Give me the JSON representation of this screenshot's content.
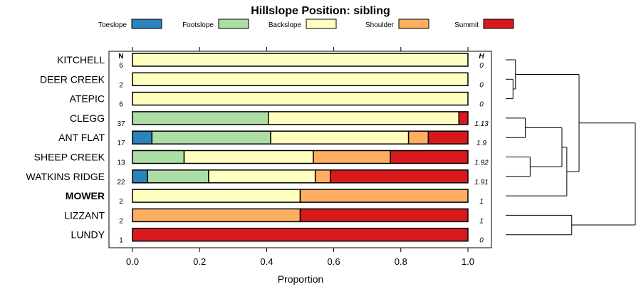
{
  "chart_data": {
    "type": "bar",
    "orientation": "horizontal",
    "stacked": true,
    "title": "Hillslope Position: sibling",
    "xlabel": "Proportion",
    "ylabel": "",
    "xlim": [
      0,
      1
    ],
    "xticks": [
      "0.0",
      "0.2",
      "0.4",
      "0.6",
      "0.8",
      "1.0"
    ],
    "xtick_values": [
      0,
      0.2,
      0.4,
      0.6,
      0.8,
      1.0
    ],
    "n_header": "N",
    "h_header": "H",
    "legend": [
      {
        "name": "Toeslope",
        "color": "#2b83ba"
      },
      {
        "name": "Footslope",
        "color": "#abdda4"
      },
      {
        "name": "Backslope",
        "color": "#ffffbf"
      },
      {
        "name": "Shoulder",
        "color": "#fdae61"
      },
      {
        "name": "Summit",
        "color": "#d7191c"
      }
    ],
    "categories": [
      "KITCHELL",
      "DEER CREEK",
      "ATEPIC",
      "CLEGG",
      "ANT FLAT",
      "SHEEP CREEK",
      "WATKINS RIDGE",
      "MOWER",
      "LIZZANT",
      "LUNDY"
    ],
    "bold_category": "MOWER",
    "n": [
      "6",
      "2",
      "6",
      "37",
      "17",
      "13",
      "22",
      "2",
      "2",
      "1"
    ],
    "h": [
      "0",
      "0",
      "0",
      "1.13",
      "1.9",
      "1.92",
      "1.91",
      "1",
      "1",
      "0"
    ],
    "series": [
      {
        "name": "Toeslope",
        "values": [
          0,
          0,
          0,
          0,
          0.058,
          0,
          0.045,
          0,
          0,
          0
        ]
      },
      {
        "name": "Footslope",
        "values": [
          0,
          0,
          0,
          0.405,
          0.354,
          0.154,
          0.182,
          0,
          0,
          0
        ]
      },
      {
        "name": "Backslope",
        "values": [
          1,
          1,
          1,
          0.568,
          0.411,
          0.385,
          0.318,
          0.5,
          0,
          0
        ]
      },
      {
        "name": "Shoulder",
        "values": [
          0,
          0,
          0,
          0,
          0.059,
          0.23,
          0.045,
          0.5,
          0.5,
          0
        ]
      },
      {
        "name": "Summit",
        "values": [
          0,
          0,
          0,
          0.027,
          0.118,
          0.231,
          0.41,
          0,
          0.5,
          1
        ]
      }
    ],
    "dendrogram": {
      "leaf_order": [
        "KITCHELL",
        "DEER CREEK",
        "ATEPIC",
        "CLEGG",
        "ANT FLAT",
        "SHEEP CREEK",
        "WATKINS RIDGE",
        "MOWER",
        "LIZZANT",
        "LUNDY"
      ],
      "merges": [
        {
          "a": "DEER CREEK",
          "b": "ATEPIC",
          "height": 0.6
        },
        {
          "a": "KITCHELL",
          "b": "c1",
          "height": 0.8
        },
        {
          "a": "SHEEP CREEK",
          "b": "WATKINS RIDGE",
          "height": 2.0
        },
        {
          "a": "CLEGG",
          "b": "ANT FLAT",
          "height": 1.6
        },
        {
          "a": "c4",
          "b": "c3",
          "height": 4.6
        },
        {
          "a": "c5",
          "b": "MOWER",
          "height": 5.0
        },
        {
          "a": "c2",
          "b": "c6",
          "height": 6.0
        },
        {
          "a": "LIZZANT",
          "b": "LUNDY",
          "height": 5.4
        },
        {
          "a": "c7",
          "b": "c8",
          "height": 10.6
        }
      ]
    }
  }
}
